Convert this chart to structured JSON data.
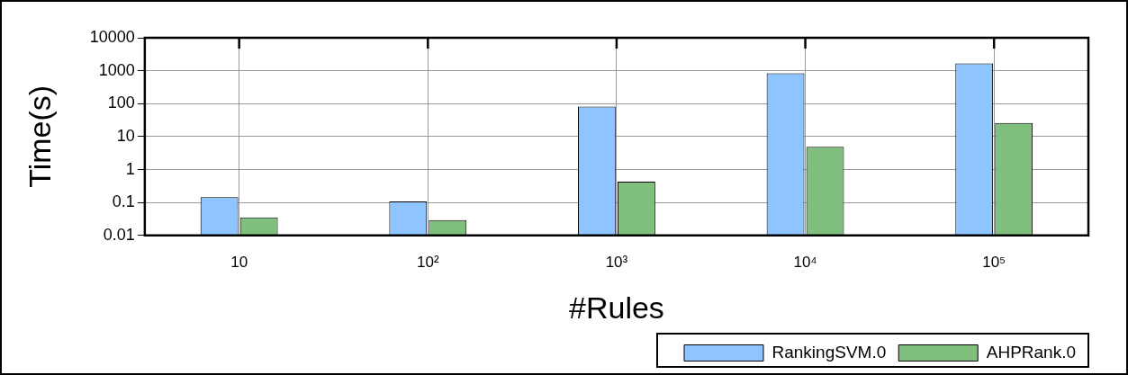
{
  "chart_data": {
    "type": "bar",
    "xlabel": "#Rules",
    "ylabel": "Time(s)",
    "categories": [
      "10",
      "10²",
      "10³",
      "10⁴",
      "10⁵"
    ],
    "series": [
      {
        "name": "RankingSVM.0",
        "color": "#8ec4ff",
        "values": [
          0.145,
          0.107,
          81,
          830,
          1670
        ]
      },
      {
        "name": "AHPRank.0",
        "color": "#80bf7e",
        "values": [
          0.035,
          0.029,
          0.43,
          4.9,
          26
        ]
      }
    ],
    "log": "y",
    "ylim": [
      0.01,
      10000
    ],
    "yticks": [
      0.01,
      0.1,
      1,
      10,
      100,
      1000,
      10000
    ],
    "grid": true,
    "legend": "bottom"
  }
}
